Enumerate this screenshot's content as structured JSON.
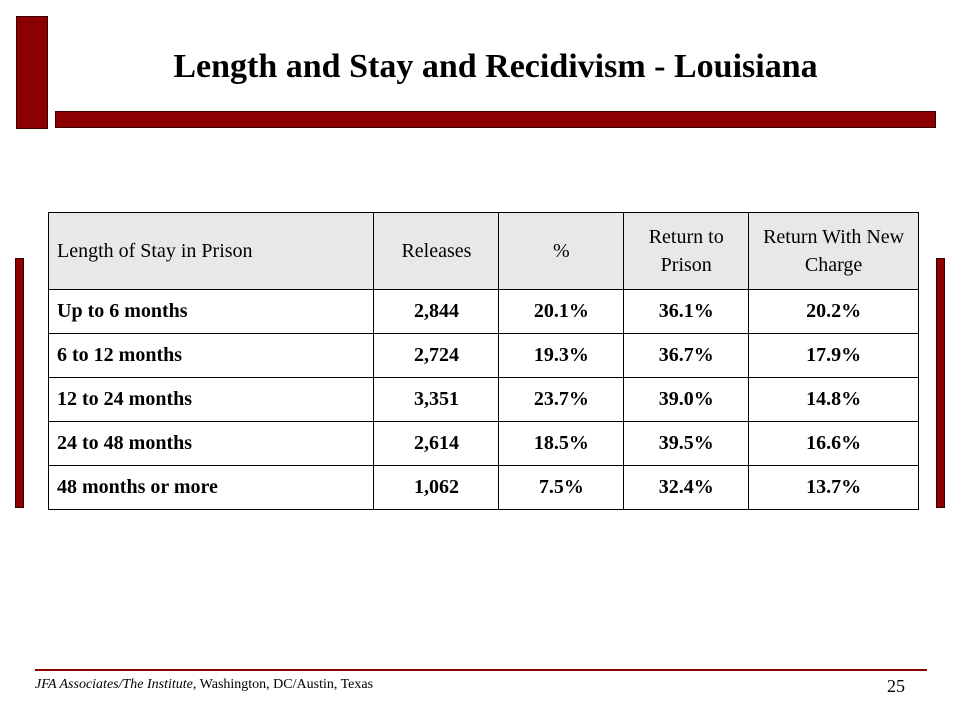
{
  "slide": {
    "title": "Length and Stay and Recidivism - Louisiana",
    "accent_color": "#8b0000"
  },
  "table": {
    "headers": [
      "Length of Stay in Prison",
      "Releases",
      "%",
      "Return to Prison",
      "Return With New Charge"
    ],
    "rows": [
      [
        "Up to 6 months",
        "2,844",
        "20.1%",
        "36.1%",
        "20.2%"
      ],
      [
        "6 to 12 months",
        "2,724",
        "19.3%",
        "36.7%",
        "17.9%"
      ],
      [
        "12 to 24 months",
        "3,351",
        "23.7%",
        "39.0%",
        "14.8%"
      ],
      [
        "24 to 48 months",
        "2,614",
        "18.5%",
        "39.5%",
        "16.6%"
      ],
      [
        "48 months or more",
        "1,062",
        "7.5%",
        "32.4%",
        "13.7%"
      ]
    ]
  },
  "footer": {
    "source_italic": "JFA Associates/The Institute",
    "source_rest": ", Washington, DC/Austin, Texas",
    "page_number": "25"
  }
}
